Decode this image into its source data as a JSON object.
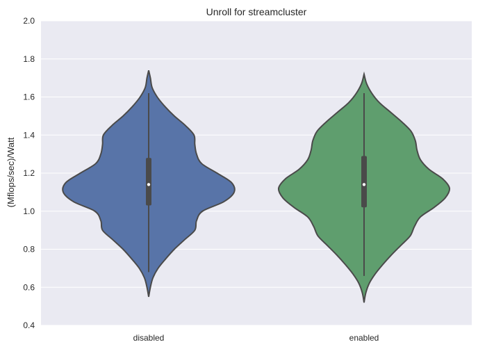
{
  "chart_data": {
    "type": "violin",
    "title": "Unroll for streamcluster",
    "xlabel": "",
    "ylabel": "(Mflops/sec)/Watt",
    "ylim": [
      0.4,
      2.0
    ],
    "yticks": [
      0.4,
      0.6,
      0.8,
      1.0,
      1.2,
      1.4,
      1.6,
      1.8,
      2.0
    ],
    "ytick_labels": [
      "0.4",
      "0.6",
      "0.8",
      "1.0",
      "1.2",
      "1.4",
      "1.6",
      "1.8",
      "2.0"
    ],
    "grid": true,
    "background_color": "#eaeaf2",
    "grid_color": "#ffffff",
    "categories": [
      "disabled",
      "enabled"
    ],
    "series": [
      {
        "category": "disabled",
        "color": "#5874a8",
        "min": 0.55,
        "max": 1.74,
        "whisker_low": 0.68,
        "whisker_high": 1.62,
        "q1": 1.03,
        "median": 1.14,
        "q3": 1.28,
        "density": [
          [
            0.55,
            0.0
          ],
          [
            0.6,
            0.02
          ],
          [
            0.65,
            0.05
          ],
          [
            0.7,
            0.11
          ],
          [
            0.75,
            0.2
          ],
          [
            0.8,
            0.3
          ],
          [
            0.85,
            0.42
          ],
          [
            0.9,
            0.54
          ],
          [
            0.95,
            0.56
          ],
          [
            1.0,
            0.63
          ],
          [
            1.05,
            0.88
          ],
          [
            1.1,
            1.0
          ],
          [
            1.15,
            0.97
          ],
          [
            1.2,
            0.8
          ],
          [
            1.25,
            0.62
          ],
          [
            1.3,
            0.56
          ],
          [
            1.35,
            0.54
          ],
          [
            1.4,
            0.53
          ],
          [
            1.45,
            0.43
          ],
          [
            1.5,
            0.3
          ],
          [
            1.55,
            0.19
          ],
          [
            1.6,
            0.1
          ],
          [
            1.65,
            0.04
          ],
          [
            1.7,
            0.02
          ],
          [
            1.74,
            0.0
          ]
        ]
      },
      {
        "category": "enabled",
        "color": "#5f9e6e",
        "min": 0.52,
        "max": 1.72,
        "whisker_low": 0.66,
        "whisker_high": 1.62,
        "q1": 1.02,
        "median": 1.14,
        "q3": 1.29,
        "density": [
          [
            0.52,
            0.0
          ],
          [
            0.57,
            0.02
          ],
          [
            0.62,
            0.06
          ],
          [
            0.67,
            0.13
          ],
          [
            0.72,
            0.22
          ],
          [
            0.77,
            0.32
          ],
          [
            0.82,
            0.43
          ],
          [
            0.87,
            0.54
          ],
          [
            0.92,
            0.59
          ],
          [
            0.97,
            0.66
          ],
          [
            1.02,
            0.82
          ],
          [
            1.07,
            0.95
          ],
          [
            1.12,
            1.0
          ],
          [
            1.17,
            0.92
          ],
          [
            1.22,
            0.76
          ],
          [
            1.27,
            0.66
          ],
          [
            1.32,
            0.62
          ],
          [
            1.37,
            0.6
          ],
          [
            1.42,
            0.55
          ],
          [
            1.47,
            0.44
          ],
          [
            1.52,
            0.31
          ],
          [
            1.57,
            0.18
          ],
          [
            1.62,
            0.09
          ],
          [
            1.67,
            0.03
          ],
          [
            1.72,
            0.0
          ]
        ]
      }
    ]
  }
}
